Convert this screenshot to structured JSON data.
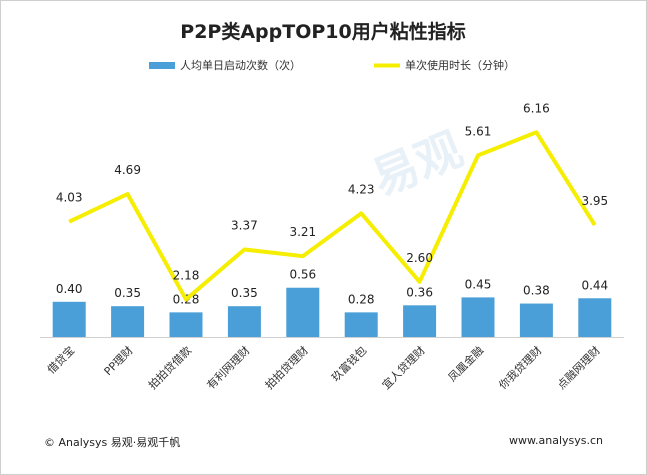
{
  "chart_data": {
    "type": "bar+line",
    "title": "P2P类AppTOP10用户粘性指标",
    "categories": [
      "借贷宝",
      "PP理财",
      "拍拍贷借款",
      "有利网理财",
      "拍拍贷理财",
      "玖富钱包",
      "宜人贷理财",
      "凤凰金融",
      "你我贷理财",
      "点融网理财"
    ],
    "series": [
      {
        "name": "人均单日启动次数（次）",
        "type": "bar",
        "color": "#4a9fd8",
        "values": [
          0.4,
          0.35,
          0.28,
          0.35,
          0.56,
          0.28,
          0.36,
          0.45,
          0.38,
          0.44
        ]
      },
      {
        "name": "单次使用时长（分钟）",
        "type": "line",
        "color": "#f5ee00",
        "values": [
          4.03,
          4.69,
          2.18,
          3.37,
          3.21,
          4.23,
          2.6,
          5.61,
          6.16,
          3.95
        ]
      }
    ],
    "legend_position": "top",
    "xlabel": "",
    "ylabel": ""
  },
  "footer": {
    "source": "© Analysys 易观·易观千帆",
    "url": "www.analysys.cn"
  },
  "watermark": "易观"
}
